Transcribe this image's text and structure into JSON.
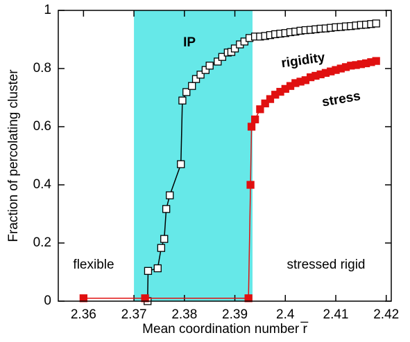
{
  "chart_data": {
    "type": "scatter",
    "x_label": "Mean coordination number r̅",
    "y_label": "Fraction of percolating cluster",
    "xlim": [
      2.355,
      2.421
    ],
    "ylim": [
      0,
      1
    ],
    "xticks": [
      2.36,
      2.37,
      2.38,
      2.39,
      2.4,
      2.41,
      2.42
    ],
    "yticks": [
      0,
      0.2,
      0.4,
      0.6,
      0.8,
      1
    ],
    "shade": {
      "x": [
        2.37,
        2.3935
      ],
      "color": "#66e8e8",
      "label": "IP"
    },
    "series": [
      {
        "name": "rigidity",
        "color": "#000000",
        "marker": "open-square",
        "x": [
          2.3727,
          2.3728,
          2.3747,
          2.3754,
          2.376,
          2.3764,
          2.3771,
          2.3793,
          2.3796,
          2.3804,
          2.3815,
          2.3823,
          2.3832,
          2.3842,
          2.385,
          2.3866,
          2.3875,
          2.3886,
          2.3893,
          2.39,
          2.391,
          2.3919,
          2.3929,
          2.394,
          2.395,
          2.396,
          2.397,
          2.398,
          2.399,
          2.4,
          2.401,
          2.402,
          2.403,
          2.404,
          2.405,
          2.406,
          2.407,
          2.408,
          2.409,
          2.41,
          2.411,
          2.412,
          2.413,
          2.414,
          2.415,
          2.416,
          2.417,
          2.418
        ],
        "values": [
          0,
          0.104,
          0.113,
          0.183,
          0.214,
          0.317,
          0.364,
          0.471,
          0.69,
          0.719,
          0.74,
          0.764,
          0.779,
          0.795,
          0.81,
          0.824,
          0.84,
          0.855,
          0.857,
          0.869,
          0.883,
          0.893,
          0.905,
          0.91,
          0.91,
          0.912,
          0.915,
          0.918,
          0.92,
          0.922,
          0.925,
          0.927,
          0.93,
          0.932,
          0.933,
          0.935,
          0.937,
          0.938,
          0.94,
          0.942,
          0.943,
          0.945,
          0.946,
          0.948,
          0.95,
          0.951,
          0.953,
          0.955
        ]
      },
      {
        "name": "stress",
        "color": "#e01010",
        "marker": "filled-square",
        "x": [
          2.36,
          2.3722,
          2.3927,
          2.3931,
          2.3933,
          2.394,
          2.395,
          2.396,
          2.397,
          2.398,
          2.399,
          2.4,
          2.401,
          2.402,
          2.403,
          2.404,
          2.405,
          2.406,
          2.407,
          2.408,
          2.409,
          2.41,
          2.411,
          2.412,
          2.413,
          2.414,
          2.415,
          2.416,
          2.417,
          2.418
        ],
        "values": [
          0.01,
          0.01,
          0.01,
          0.4,
          0.6,
          0.625,
          0.66,
          0.68,
          0.695,
          0.71,
          0.72,
          0.73,
          0.74,
          0.75,
          0.755,
          0.76,
          0.77,
          0.775,
          0.78,
          0.785,
          0.79,
          0.795,
          0.8,
          0.805,
          0.81,
          0.812,
          0.815,
          0.818,
          0.822,
          0.826
        ]
      }
    ],
    "annotations": [
      "flexible",
      "stressed rigid"
    ]
  }
}
